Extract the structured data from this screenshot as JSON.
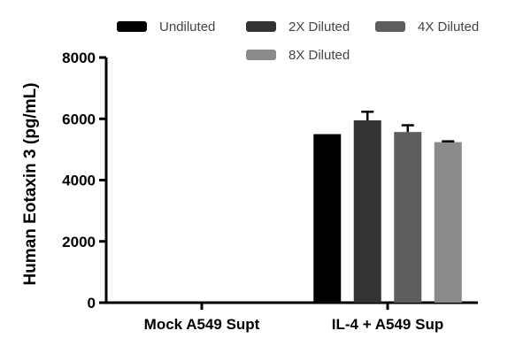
{
  "chart_data": {
    "type": "bar",
    "categories": [
      "Mock A549 Supt",
      "IL-4 + A549 Sup"
    ],
    "series": [
      {
        "name": "Undiluted",
        "values": [
          0,
          5500
        ],
        "error": [
          0,
          0
        ],
        "color": "#000000"
      },
      {
        "name": "2X Diluted",
        "values": [
          0,
          5950
        ],
        "error": [
          0,
          280
        ],
        "color": "#333333"
      },
      {
        "name": "4X Diluted",
        "values": [
          0,
          5570
        ],
        "error": [
          0,
          220
        ],
        "color": "#5e5e5e"
      },
      {
        "name": "8X Diluted",
        "values": [
          0,
          5240
        ],
        "error": [
          0,
          25
        ],
        "color": "#8a8a8a"
      }
    ],
    "title": "",
    "xlabel": "",
    "ylabel": "Human  Eotaxin 3 (pg/mL)",
    "ylim": [
      0,
      8000
    ],
    "yticks": [
      0,
      2000,
      4000,
      6000,
      8000
    ],
    "grid": false,
    "legend_position": "top"
  }
}
